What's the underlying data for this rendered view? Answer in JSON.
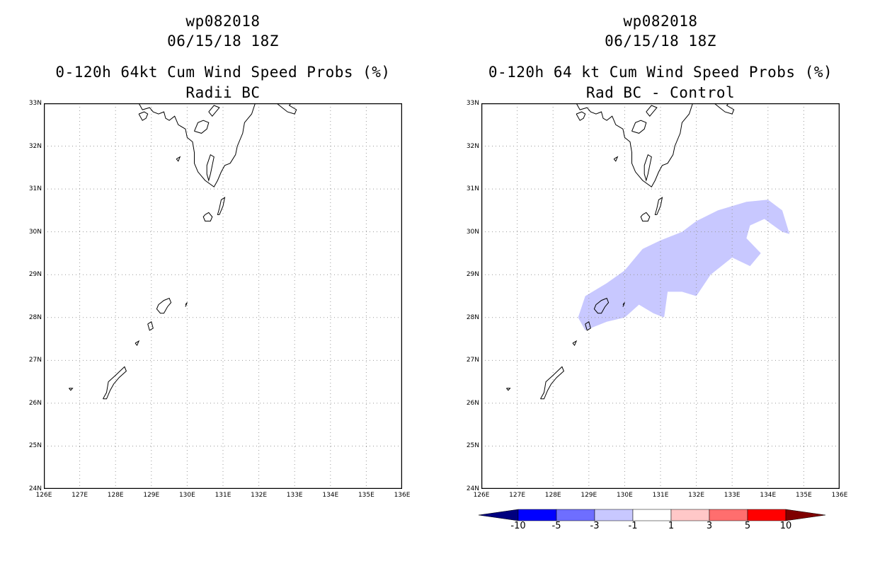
{
  "panels": [
    {
      "storm_id": "wp082018",
      "datetime": "06/15/18 18Z",
      "product": "0-120h 64kt Cum Wind Speed Probs (%)",
      "subtitle": "Radii BC"
    },
    {
      "storm_id": "wp082018",
      "datetime": "06/15/18 18Z",
      "product": "0-120h 64 kt Cum Wind Speed Probs (%)",
      "subtitle": "Rad BC - Control"
    }
  ],
  "map": {
    "lat_labels": [
      "33N",
      "32N",
      "31N",
      "30N",
      "29N",
      "28N",
      "27N",
      "26N",
      "25N",
      "24N"
    ],
    "lon_labels": [
      "126E",
      "127E",
      "128E",
      "129E",
      "130E",
      "131E",
      "132E",
      "133E",
      "134E",
      "135E",
      "136E"
    ]
  },
  "difference_field": {
    "category": "-3 to -1",
    "color": "#c8c8ff",
    "polygon_lonlat": [
      [
        128.7,
        28.0
      ],
      [
        128.9,
        28.5
      ],
      [
        129.5,
        28.8
      ],
      [
        130.0,
        29.1
      ],
      [
        130.5,
        29.6
      ],
      [
        131.0,
        29.8
      ],
      [
        131.6,
        30.0
      ],
      [
        132.0,
        30.25
      ],
      [
        132.6,
        30.5
      ],
      [
        133.4,
        30.7
      ],
      [
        134.0,
        30.75
      ],
      [
        134.4,
        30.5
      ],
      [
        134.6,
        29.95
      ],
      [
        134.4,
        30.0
      ],
      [
        133.9,
        30.3
      ],
      [
        133.5,
        30.15
      ],
      [
        133.4,
        29.85
      ],
      [
        133.8,
        29.5
      ],
      [
        133.5,
        29.2
      ],
      [
        133.0,
        29.4
      ],
      [
        132.4,
        29.0
      ],
      [
        132.0,
        28.5
      ],
      [
        131.6,
        28.6
      ],
      [
        131.2,
        28.6
      ],
      [
        131.1,
        28.0
      ],
      [
        130.8,
        28.1
      ],
      [
        130.4,
        28.3
      ],
      [
        130.0,
        28.0
      ],
      [
        129.5,
        27.9
      ],
      [
        128.9,
        27.7
      ]
    ]
  },
  "colorbar": {
    "colors": [
      "#00007f",
      "#0000ff",
      "#6e6eff",
      "#c8c8ff",
      "#ffffff",
      "#ffc8c8",
      "#ff6e6e",
      "#ff0000",
      "#7f0000"
    ],
    "labels": [
      "-10",
      "-5",
      "-3",
      "-1",
      "1",
      "3",
      "5",
      "10"
    ]
  }
}
